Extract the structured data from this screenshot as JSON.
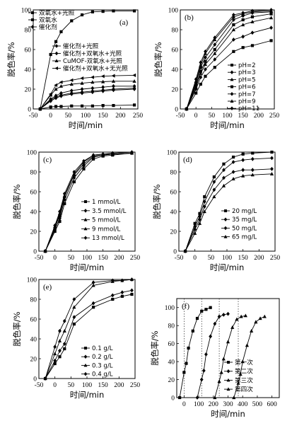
{
  "chart_data": [
    {
      "type": "line",
      "panel_label": "(a)",
      "xlabel": "时间/min",
      "ylabel": "脱色率/%",
      "xlim": [
        -50,
        250
      ],
      "ylim": [
        0,
        100
      ],
      "xticks": [
        -50,
        0,
        50,
        100,
        150,
        200,
        250
      ],
      "yticks": [
        0,
        20,
        40,
        60,
        80,
        100
      ],
      "x": [
        -30,
        0,
        15,
        30,
        60,
        90,
        120,
        150,
        180,
        240
      ],
      "series": [
        {
          "name": "双氧水+光照",
          "marker": "s",
          "values": [
            0,
            2,
            2.5,
            2.5,
            3,
            3,
            3,
            3.5,
            3.5,
            4
          ]
        },
        {
          "name": "双氧水",
          "marker": "s",
          "values": [
            0,
            55,
            68,
            78,
            89,
            95,
            98,
            98.5,
            99,
            99
          ]
        },
        {
          "name": "催化剂",
          "marker": "d",
          "values": [
            0,
            8,
            11,
            13,
            15,
            16,
            17,
            18,
            19,
            20
          ]
        },
        {
          "name": "催化剂+光照",
          "marker": "dp",
          "values": [
            0,
            9,
            12,
            14,
            16,
            17,
            18,
            19,
            20,
            21
          ]
        },
        {
          "name": "催化剂+双氧水+光照",
          "marker": "d",
          "values": [
            0,
            10,
            13.5,
            16,
            18.5,
            20,
            21,
            22,
            23,
            23
          ]
        },
        {
          "name": "CuMOF-双氧水+光照",
          "marker": "t",
          "values": [
            0,
            14,
            20,
            23,
            25,
            26,
            27,
            27.5,
            28,
            28
          ]
        },
        {
          "name": "催化剂+双氧水+无光照",
          "marker": "l",
          "values": [
            0,
            15,
            24,
            27,
            29,
            31,
            32,
            33,
            33.5,
            34
          ]
        }
      ],
      "legend_loc": "upper-left"
    },
    {
      "type": "line",
      "panel_label": "(b)",
      "xlabel": "时间/min",
      "ylabel": "脱色率/%",
      "xlim": [
        -50,
        250
      ],
      "ylim": [
        0,
        100
      ],
      "xticks": [
        -50,
        0,
        50,
        100,
        150,
        200,
        250
      ],
      "yticks": [
        0,
        20,
        40,
        60,
        80,
        100
      ],
      "x": [
        -30,
        0,
        15,
        30,
        60,
        120,
        150,
        180,
        240
      ],
      "series": [
        {
          "name": "pH=2",
          "marker": "s",
          "values": [
            0,
            16,
            25,
            33,
            42,
            58,
            62,
            64,
            69
          ]
        },
        {
          "name": "pH=3",
          "marker": "d",
          "values": [
            0,
            20,
            32,
            40,
            50,
            70,
            73,
            77,
            82
          ]
        },
        {
          "name": "pH=5",
          "marker": "t",
          "values": [
            0,
            22,
            36,
            45,
            56,
            80,
            85,
            88,
            92
          ]
        },
        {
          "name": "pH=6",
          "marker": "s",
          "values": [
            0,
            24,
            38,
            48,
            60,
            85,
            90,
            93,
            96
          ]
        },
        {
          "name": "pH=7",
          "marker": "dp",
          "values": [
            0,
            26,
            42,
            52,
            65,
            90,
            94,
            97,
            98
          ]
        },
        {
          "name": "pH=9",
          "marker": "t",
          "values": [
            0,
            28,
            44,
            56,
            70,
            93,
            96,
            98,
            99
          ]
        },
        {
          "name": "pH=11",
          "marker": "d",
          "values": [
            0,
            30,
            47,
            58,
            72,
            95,
            97,
            99,
            100
          ]
        }
      ],
      "legend_loc": "lower-right"
    },
    {
      "type": "line",
      "panel_label": "(c)",
      "xlabel": "时间/min",
      "ylabel": "脱色率/%",
      "xlim": [
        -50,
        250
      ],
      "ylim": [
        0,
        100
      ],
      "xticks": [
        -50,
        0,
        50,
        100,
        150,
        200,
        250
      ],
      "yticks": [
        0,
        20,
        40,
        60,
        80,
        100
      ],
      "x": [
        -30,
        0,
        15,
        30,
        60,
        90,
        120,
        150,
        180,
        240
      ],
      "series": [
        {
          "name": "1 mmol/L",
          "marker": "s",
          "values": [
            0,
            20,
            30,
            48,
            70,
            83,
            93,
            96,
            97,
            99
          ]
        },
        {
          "name": "3.5 mmol/L",
          "marker": "d",
          "values": [
            0,
            22,
            33,
            52,
            74,
            86,
            95,
            97,
            98,
            99
          ]
        },
        {
          "name": "5 mmol/L",
          "marker": "t",
          "values": [
            0,
            24,
            36,
            55,
            77,
            88,
            96,
            97,
            98,
            99
          ]
        },
        {
          "name": "9 mmol/L",
          "marker": "t",
          "values": [
            0,
            25,
            38,
            56,
            78,
            90,
            97,
            98,
            98,
            99
          ]
        },
        {
          "name": "13 mmol/L",
          "marker": "d",
          "values": [
            0,
            26,
            40,
            58,
            80,
            91,
            97,
            98,
            99,
            100
          ]
        }
      ],
      "legend_loc": "lower-right"
    },
    {
      "type": "line",
      "panel_label": "(d)",
      "xlabel": "时间/min",
      "ylabel": "脱色率/%",
      "xlim": [
        -50,
        250
      ],
      "ylim": [
        0,
        100
      ],
      "xticks": [
        -50,
        0,
        50,
        100,
        150,
        200,
        250
      ],
      "yticks": [
        0,
        20,
        40,
        60,
        80,
        100
      ],
      "x": [
        -30,
        0,
        15,
        30,
        60,
        90,
        120,
        150,
        180,
        240
      ],
      "series": [
        {
          "name": "20 mg/L",
          "marker": "s",
          "values": [
            0,
            28,
            38,
            55,
            75,
            88,
            95,
            98,
            99,
            100
          ]
        },
        {
          "name": "35 mg/L",
          "marker": "d",
          "values": [
            0,
            25,
            35,
            50,
            70,
            82,
            90,
            92,
            93,
            94
          ]
        },
        {
          "name": "50 mg/L",
          "marker": "d",
          "values": [
            0,
            22,
            32,
            45,
            62,
            74,
            80,
            82,
            82,
            83
          ]
        },
        {
          "name": "65 mg/L",
          "marker": "t",
          "values": [
            0,
            18,
            28,
            40,
            55,
            66,
            73,
            76,
            77,
            78
          ]
        }
      ],
      "legend_loc": "lower-right"
    },
    {
      "type": "line",
      "panel_label": "(e)",
      "xlabel": "时间/min",
      "ylabel": "脱色率/%",
      "xlim": [
        -50,
        250
      ],
      "ylim": [
        0,
        100
      ],
      "xticks": [
        -50,
        0,
        50,
        100,
        150,
        200,
        250
      ],
      "yticks": [
        0,
        20,
        40,
        60,
        80,
        100
      ],
      "x": [
        -30,
        0,
        15,
        30,
        60,
        120,
        180,
        210,
        240
      ],
      "series": [
        {
          "name": "0.1 g/L",
          "marker": "s",
          "values": [
            0,
            15,
            22,
            30,
            55,
            72,
            80,
            83,
            85
          ]
        },
        {
          "name": "0.2 g/L",
          "marker": "d",
          "values": [
            0,
            18,
            28,
            35,
            62,
            76,
            84,
            87,
            89
          ]
        },
        {
          "name": "0.3 g/L",
          "marker": "t",
          "values": [
            0,
            25,
            38,
            48,
            72,
            94,
            98,
            99,
            100
          ]
        },
        {
          "name": "0.4 g/L",
          "marker": "dp",
          "values": [
            0,
            32,
            48,
            58,
            80,
            97,
            99,
            99,
            100
          ]
        }
      ],
      "legend_loc": "lower-right"
    },
    {
      "type": "line",
      "panel_label": "(f)",
      "xlabel": "时间/min",
      "ylabel": "脱色率/%",
      "xlim": [
        -50,
        650
      ],
      "ylim": [
        0,
        110
      ],
      "xticks": [
        0,
        100,
        200,
        300,
        400,
        500,
        600
      ],
      "yticks": [
        0,
        20,
        40,
        60,
        80,
        100
      ],
      "vlines": [
        0,
        120,
        240,
        370
      ],
      "series": [
        {
          "name": "第一次",
          "marker": "s",
          "x": [
            -30,
            0,
            15,
            30,
            60,
            90,
            120,
            150,
            180
          ],
          "values": [
            0,
            28,
            38,
            55,
            74,
            88,
            96,
            98,
            100
          ]
        },
        {
          "name": "第二次",
          "marker": "d",
          "x": [
            90,
            120,
            135,
            150,
            180,
            210,
            240,
            270,
            300
          ],
          "values": [
            0,
            20,
            30,
            48,
            68,
            82,
            90,
            92,
            93
          ]
        },
        {
          "name": "第三次",
          "marker": "t",
          "x": [
            210,
            240,
            255,
            270,
            300,
            330,
            360,
            390,
            420
          ],
          "values": [
            0,
            18,
            28,
            43,
            62,
            78,
            87,
            90,
            91
          ]
        },
        {
          "name": "第四次",
          "marker": "t",
          "x": [
            340,
            370,
            385,
            400,
            430,
            460,
            490,
            520,
            550
          ],
          "values": [
            0,
            16,
            26,
            40,
            58,
            74,
            84,
            88,
            90
          ]
        }
      ],
      "legend_loc": "right"
    }
  ]
}
